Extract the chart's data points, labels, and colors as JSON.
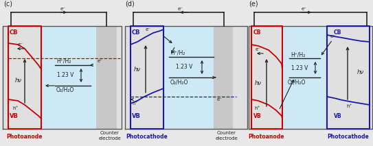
{
  "panels": [
    "(c)",
    "(d)",
    "(e)"
  ],
  "red": "#cc0000",
  "blue": "#1a1aaa",
  "black": "#222222",
  "gray_bg": "#c8c8c8",
  "light_gray": "#e0e0e0",
  "electrolyte_blue": "#cce9f5",
  "fig_bg": "#e8e8e8",
  "text_photoanode": "Photoanode",
  "text_photocathode": "Photocathode",
  "text_counter": "Counter\nelectrode",
  "text_CB": "CB",
  "text_VB": "VB",
  "text_HH2": "H⁺/H₂",
  "text_O2H2O": "O₂/H₂O",
  "text_123V": "1.23 V",
  "text_hv": "hν",
  "text_eminus": "e⁻",
  "text_hplus": "h⁺"
}
